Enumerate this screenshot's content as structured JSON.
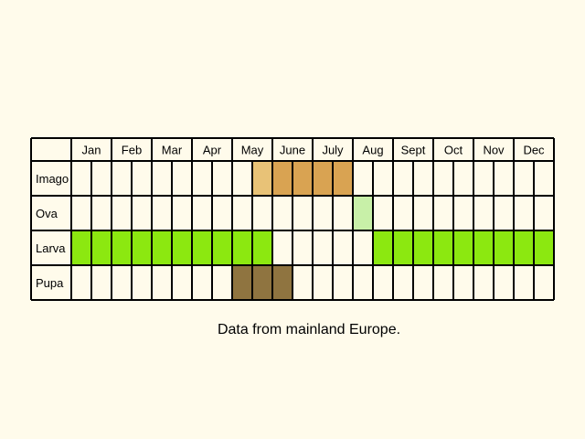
{
  "chart_data": {
    "type": "table",
    "months": [
      "Jan",
      "Feb",
      "Mar",
      "Apr",
      "May",
      "June",
      "July",
      "Aug",
      "Sept",
      "Oct",
      "Nov",
      "Dec"
    ],
    "stages": [
      {
        "name": "Imago",
        "color": "#d9a352",
        "periods": [
          {
            "from": "mid May",
            "to": "end of May",
            "shade": "#e8c277"
          },
          {
            "from": "June",
            "to": "end of July"
          }
        ]
      },
      {
        "name": "Ova",
        "color": "#c8f0a8",
        "periods": [
          {
            "from": "August",
            "to": "mid August"
          }
        ]
      },
      {
        "name": "Larva",
        "color": "#8ce810",
        "periods": [
          {
            "from": "January",
            "to": "May"
          },
          {
            "from": "mid August",
            "to": "December"
          }
        ]
      },
      {
        "name": "Pupa",
        "color": "#8f7440",
        "periods": [
          {
            "from": "May",
            "to": "mid June"
          }
        ]
      }
    ],
    "caption": "Data from mainland Europe."
  }
}
